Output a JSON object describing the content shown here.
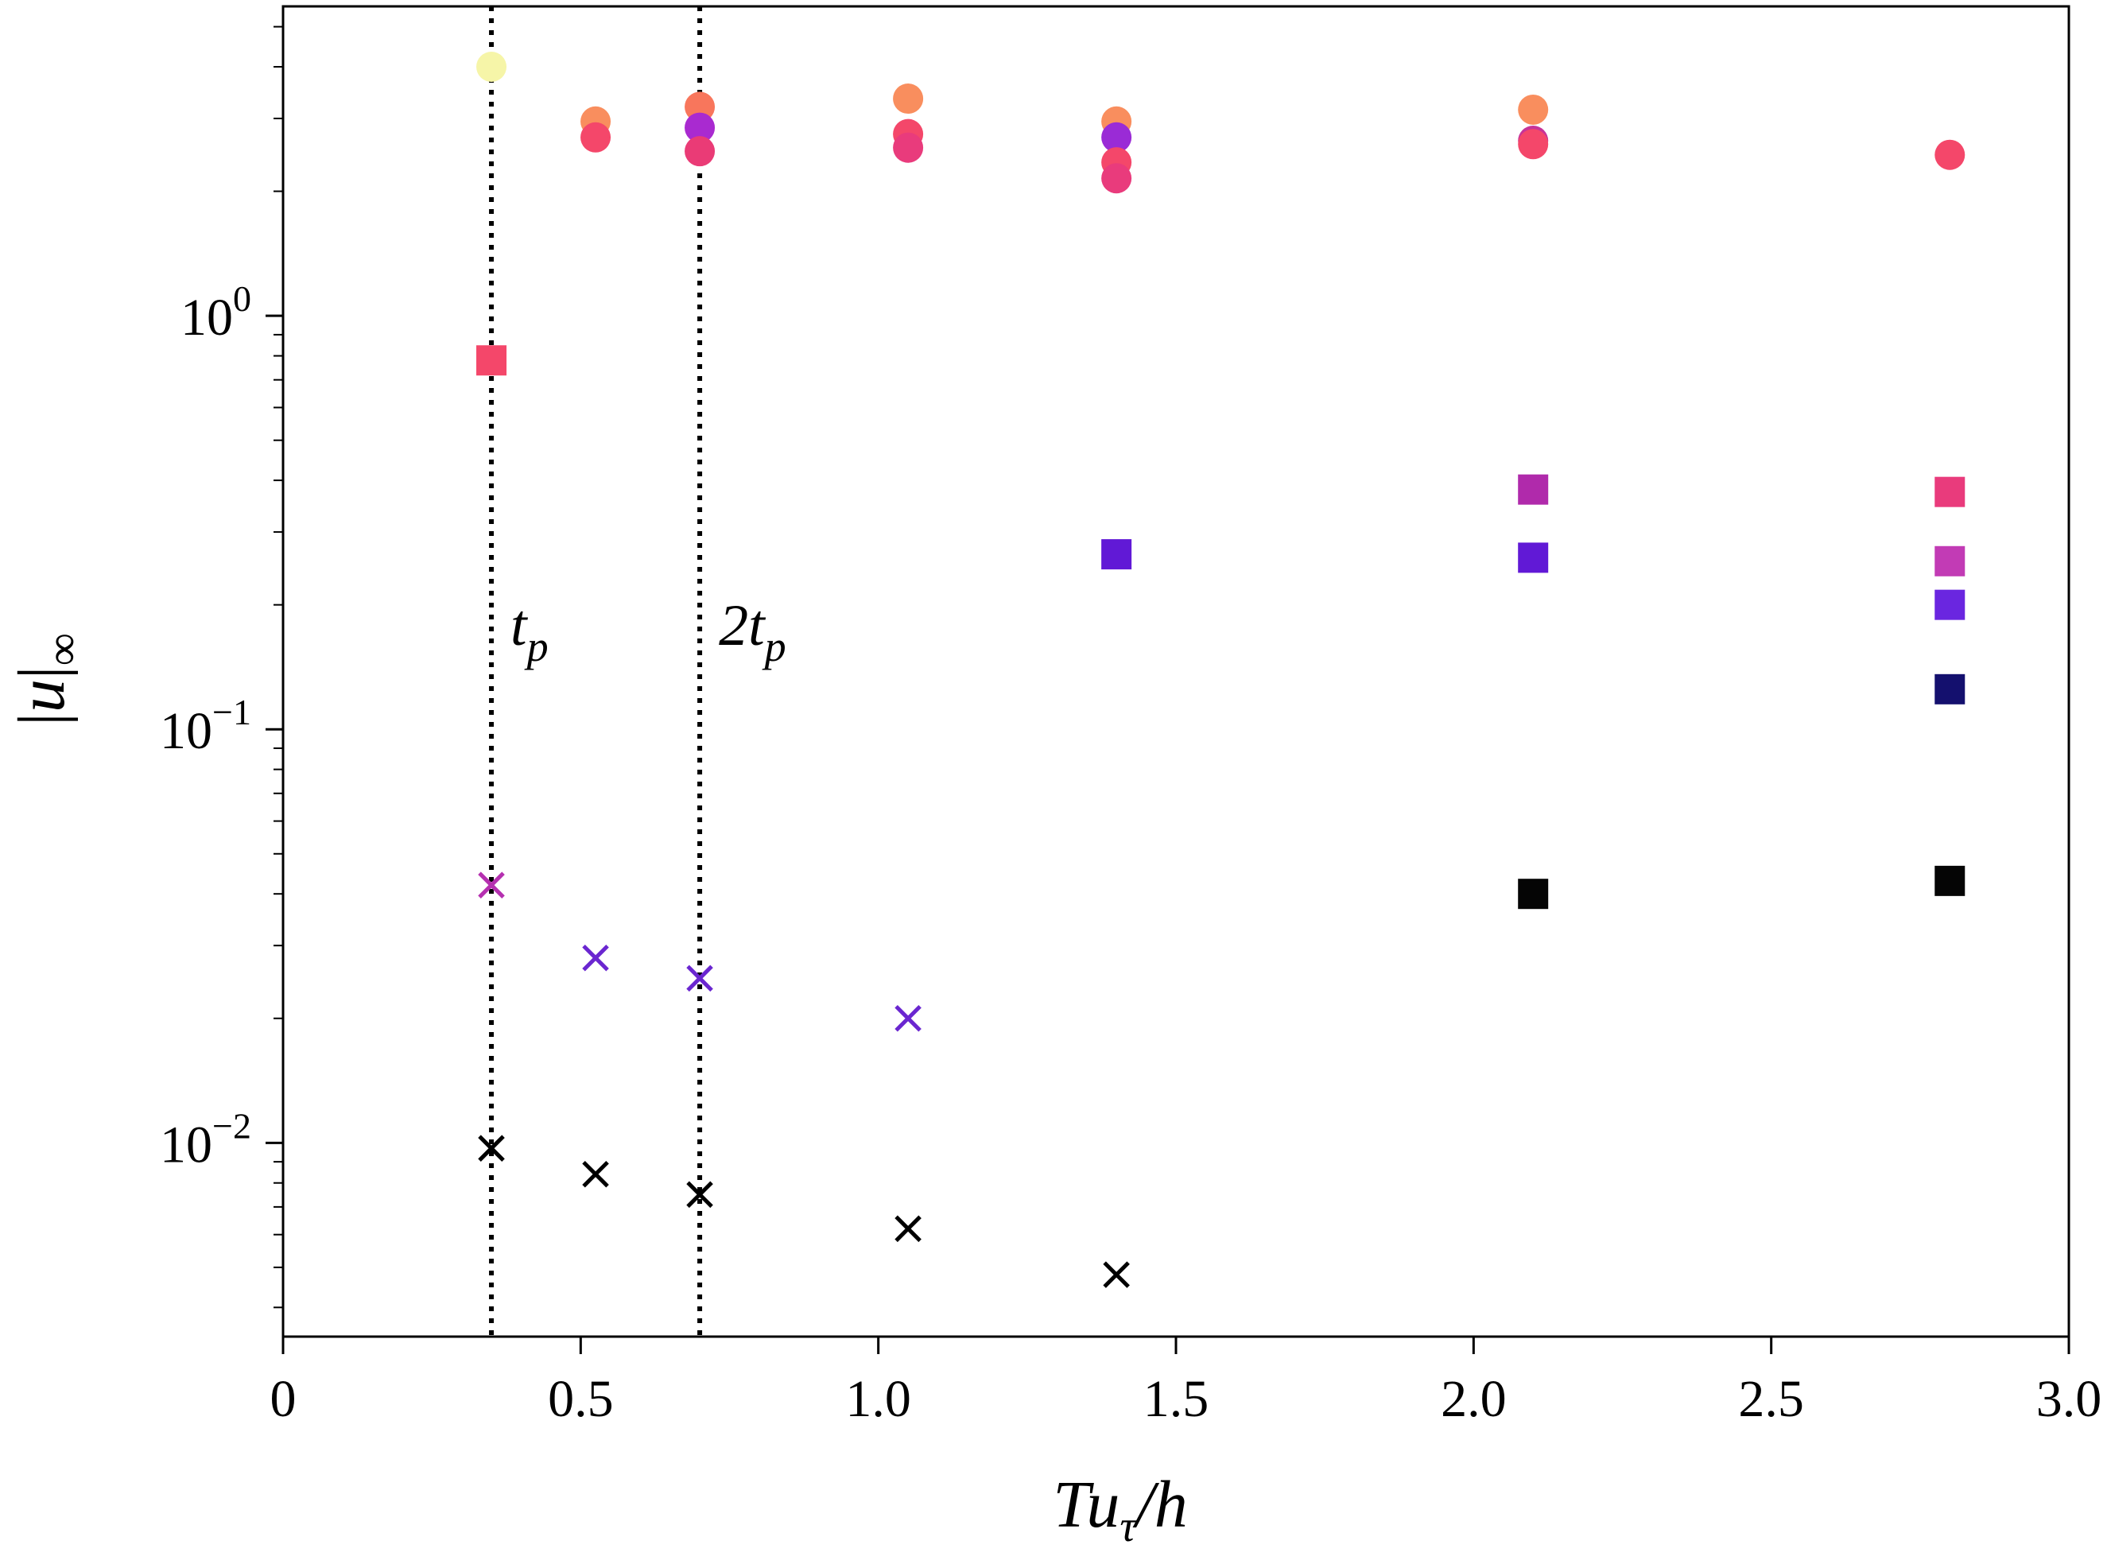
{
  "chart_data": {
    "type": "scatter",
    "xlabel": "Tu_τ/h",
    "ylabel": "|u|_∞",
    "xlim": [
      0,
      3.0
    ],
    "ylim": [
      0.0034,
      5.6
    ],
    "yscale": "log",
    "grid": false,
    "x_ticks": [
      "0",
      "0.5",
      "1.0",
      "1.5",
      "2.0",
      "2.5",
      "3.0"
    ],
    "y_ticks": [
      {
        "value": 1,
        "label": "10",
        "exp": "0"
      },
      {
        "value": 0.1,
        "label": "10",
        "exp": "−1"
      },
      {
        "value": 0.01,
        "label": "10",
        "exp": "−2"
      }
    ],
    "vlines": [
      {
        "x": 0.35,
        "label": "t",
        "sub": "p"
      },
      {
        "x": 0.7,
        "label": "2t",
        "sub": "p"
      }
    ],
    "series": [
      {
        "marker": "circle",
        "points": [
          {
            "x": 0.35,
            "y": 4.0,
            "color": "#f6f5a8"
          },
          {
            "x": 0.525,
            "y": 2.95,
            "color": "#f98e5e"
          },
          {
            "x": 0.525,
            "y": 2.7,
            "color": "#f4476a"
          },
          {
            "x": 0.7,
            "y": 3.2,
            "color": "#f8765c"
          },
          {
            "x": 0.7,
            "y": 2.85,
            "color": "#a92ad0"
          },
          {
            "x": 0.7,
            "y": 2.5,
            "color": "#ea3b76"
          },
          {
            "x": 1.05,
            "y": 3.35,
            "color": "#f98e5e"
          },
          {
            "x": 1.05,
            "y": 2.75,
            "color": "#f4476a"
          },
          {
            "x": 1.05,
            "y": 2.55,
            "color": "#e93b7c"
          },
          {
            "x": 1.4,
            "y": 2.95,
            "color": "#f98e5e"
          },
          {
            "x": 1.4,
            "y": 2.7,
            "color": "#9a2bd6"
          },
          {
            "x": 1.4,
            "y": 2.35,
            "color": "#f4476a"
          },
          {
            "x": 1.4,
            "y": 2.15,
            "color": "#e93b7c"
          },
          {
            "x": 2.1,
            "y": 3.15,
            "color": "#f98e5e"
          },
          {
            "x": 2.1,
            "y": 2.65,
            "color": "#c73399"
          },
          {
            "x": 2.1,
            "y": 2.6,
            "color": "#f4476a"
          },
          {
            "x": 2.8,
            "y": 2.45,
            "color": "#f4476a"
          }
        ]
      },
      {
        "marker": "square",
        "points": [
          {
            "x": 0.35,
            "y": 0.78,
            "color": "#f4476a"
          },
          {
            "x": 1.4,
            "y": 0.265,
            "color": "#6119d6"
          },
          {
            "x": 2.1,
            "y": 0.38,
            "color": "#b02aab"
          },
          {
            "x": 2.1,
            "y": 0.26,
            "color": "#6119d6"
          },
          {
            "x": 2.1,
            "y": 0.04,
            "color": "#050505"
          },
          {
            "x": 2.8,
            "y": 0.375,
            "color": "#e93b7c"
          },
          {
            "x": 2.8,
            "y": 0.255,
            "color": "#c23bb5"
          },
          {
            "x": 2.8,
            "y": 0.2,
            "color": "#6a26e0"
          },
          {
            "x": 2.8,
            "y": 0.125,
            "color": "#14106e"
          },
          {
            "x": 2.8,
            "y": 0.043,
            "color": "#050505"
          }
        ]
      },
      {
        "marker": "x",
        "points": [
          {
            "x": 0.35,
            "y": 0.042,
            "color": "#b530b0"
          },
          {
            "x": 0.525,
            "y": 0.028,
            "color": "#6a26d0"
          },
          {
            "x": 0.7,
            "y": 0.025,
            "color": "#6a26d0"
          },
          {
            "x": 1.05,
            "y": 0.02,
            "color": "#6a26d0"
          },
          {
            "x": 0.35,
            "y": 0.0097,
            "color": "#000000"
          },
          {
            "x": 0.525,
            "y": 0.0084,
            "color": "#000000"
          },
          {
            "x": 0.7,
            "y": 0.0075,
            "color": "#000000"
          },
          {
            "x": 1.05,
            "y": 0.0062,
            "color": "#000000"
          },
          {
            "x": 1.4,
            "y": 0.0048,
            "color": "#000000"
          }
        ]
      }
    ]
  }
}
